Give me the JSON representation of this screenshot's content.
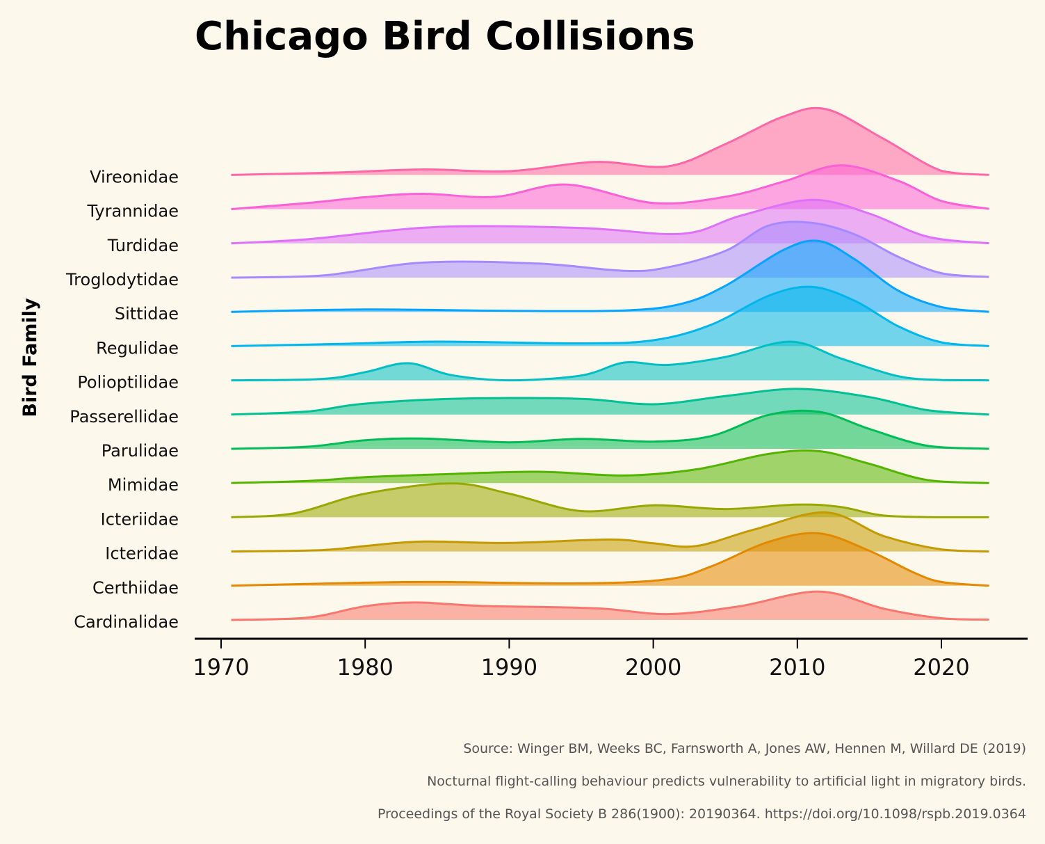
{
  "chart_data": {
    "type": "area",
    "subtype": "ridgeline",
    "title": "Chicago Bird Collisions",
    "ylabel": "Bird Family",
    "xlabel": "",
    "xlim": [
      1968,
      2026
    ],
    "x_ticks": [
      1970,
      1980,
      1990,
      2000,
      2010,
      2020
    ],
    "x_range": [
      1970.7,
      2023.3
    ],
    "grid": false,
    "legend": "none",
    "caption": [
      "Source: Winger BM, Weeks BC, Farnsworth A, Jones AW, Hennen M, Willard DE (2019)",
      "Nocturnal flight-calling behaviour predicts vulnerability to artificial light in migratory birds.",
      "Proceedings of the Royal Society B 286(1900): 20190364. https://doi.org/10.1098/rspb.2019.0364"
    ],
    "series": [
      {
        "name": "Cardinalidae",
        "color": "#f8766d",
        "x": [
          1970.7,
          1976,
          1980,
          1983.5,
          1988,
          1996,
          2001,
          2006,
          2011.5,
          2016,
          2020,
          2023.3
        ],
        "y": [
          0.0,
          0.07,
          0.4,
          0.51,
          0.41,
          0.34,
          0.17,
          0.4,
          0.83,
          0.33,
          0.05,
          0.01
        ]
      },
      {
        "name": "Certhiidae",
        "color": "#e38900",
        "x": [
          1970.7,
          1980,
          1985,
          1995,
          2001,
          2004,
          2008,
          2011.5,
          2015,
          2018,
          2020,
          2023.3
        ],
        "y": [
          0.0,
          0.09,
          0.11,
          0.07,
          0.19,
          0.56,
          1.28,
          1.53,
          1.02,
          0.4,
          0.11,
          0.0
        ]
      },
      {
        "name": "Icteridae",
        "color": "#c49a00",
        "x": [
          1970.7,
          1977,
          1980,
          1984,
          1990,
          1997,
          2000,
          2003,
          2007,
          2012,
          2016,
          2020,
          2023.3
        ],
        "y": [
          0.0,
          0.04,
          0.16,
          0.29,
          0.25,
          0.35,
          0.24,
          0.16,
          0.64,
          1.14,
          0.45,
          0.06,
          0.0
        ]
      },
      {
        "name": "Icteriidae",
        "color": "#99a800",
        "x": [
          1970.7,
          1975,
          1980,
          1986,
          1990,
          1995,
          2000,
          2005,
          2010,
          2013,
          2016,
          2020,
          2023.3
        ],
        "y": [
          0.0,
          0.11,
          0.69,
          0.99,
          0.69,
          0.18,
          0.35,
          0.24,
          0.37,
          0.3,
          0.05,
          0.0,
          0.0
        ]
      },
      {
        "name": "Mimidae",
        "color": "#53b400",
        "x": [
          1970.7,
          1976,
          1980,
          1985,
          1992,
          1998,
          2003,
          2008,
          2011.5,
          2015,
          2019,
          2023.3
        ],
        "y": [
          0.0,
          0.06,
          0.17,
          0.25,
          0.33,
          0.22,
          0.4,
          0.85,
          0.93,
          0.56,
          0.09,
          0.0
        ]
      },
      {
        "name": "Parulidae",
        "color": "#00bc56",
        "x": [
          1970.7,
          1976,
          1980,
          1984,
          1990,
          1995,
          2000,
          2004,
          2008,
          2011.5,
          2015,
          2019,
          2023.3
        ],
        "y": [
          0.0,
          0.06,
          0.25,
          0.3,
          0.19,
          0.29,
          0.21,
          0.37,
          0.99,
          1.08,
          0.58,
          0.09,
          0.0
        ]
      },
      {
        "name": "Passerellidae",
        "color": "#00c094",
        "x": [
          1970.7,
          1976,
          1980,
          1987,
          1995,
          2000,
          2005,
          2010,
          2015,
          2019,
          2023.3
        ],
        "y": [
          0.0,
          0.09,
          0.32,
          0.47,
          0.46,
          0.3,
          0.54,
          0.75,
          0.51,
          0.13,
          0.0
        ]
      },
      {
        "name": "Polioptilidae",
        "color": "#00bfc4",
        "x": [
          1970.7,
          1977,
          1980,
          1983,
          1986,
          1990,
          1995,
          1998,
          2001,
          2005,
          2009.5,
          2013,
          2017,
          2020,
          2023.3
        ],
        "y": [
          0.0,
          0.04,
          0.24,
          0.5,
          0.15,
          0.0,
          0.14,
          0.52,
          0.45,
          0.68,
          1.13,
          0.64,
          0.12,
          0.01,
          0.0
        ]
      },
      {
        "name": "Regulidae",
        "color": "#00b6eb",
        "x": [
          1970.7,
          1978,
          1985,
          1995,
          2000,
          2004,
          2008,
          2011,
          2014,
          2017,
          2020,
          2023.3
        ],
        "y": [
          0.0,
          0.06,
          0.13,
          0.08,
          0.17,
          0.62,
          1.47,
          1.73,
          1.32,
          0.58,
          0.11,
          0.0
        ]
      },
      {
        "name": "Sittidae",
        "color": "#06a4ff",
        "x": [
          1970.7,
          1980,
          1990,
          1998,
          2002,
          2005,
          2009,
          2011.5,
          2014,
          2017,
          2020,
          2023.3
        ],
        "y": [
          0.0,
          0.07,
          0.03,
          0.04,
          0.24,
          0.76,
          1.8,
          2.07,
          1.53,
          0.62,
          0.14,
          0.0
        ]
      },
      {
        "name": "Troglodytidae",
        "color": "#a58aff",
        "x": [
          1970.7,
          1977,
          1984,
          1992,
          1998,
          2001,
          2005,
          2008,
          2011,
          2014,
          2017,
          2020,
          2023.3
        ],
        "y": [
          0.0,
          0.06,
          0.44,
          0.41,
          0.2,
          0.3,
          0.78,
          1.52,
          1.6,
          1.26,
          0.61,
          0.13,
          0.02
        ]
      },
      {
        "name": "Turdidae",
        "color": "#df70f8",
        "x": [
          1970.7,
          1976,
          1985,
          1995,
          2002,
          2006,
          2011,
          2015,
          2019,
          2023.3
        ],
        "y": [
          0.0,
          0.12,
          0.48,
          0.45,
          0.28,
          0.8,
          1.27,
          0.87,
          0.2,
          0.0
        ]
      },
      {
        "name": "Tyrannidae",
        "color": "#fb61d7",
        "x": [
          1970.7,
          1976,
          1980,
          1984,
          1989,
          1994,
          2000,
          2005,
          2009,
          2013,
          2017,
          2020,
          2023.3
        ],
        "y": [
          0.0,
          0.18,
          0.35,
          0.45,
          0.36,
          0.72,
          0.18,
          0.36,
          0.8,
          1.28,
          0.83,
          0.24,
          0.01
        ]
      },
      {
        "name": "Vireonidae",
        "color": "#ff66a8",
        "x": [
          1970.7,
          1978,
          1984,
          1990,
          1996,
          2001,
          2005,
          2009,
          2012,
          2016,
          2020,
          2023.3
        ],
        "y": [
          0.0,
          0.07,
          0.16,
          0.11,
          0.38,
          0.25,
          0.9,
          1.7,
          1.92,
          1.05,
          0.12,
          0.0
        ]
      }
    ]
  }
}
